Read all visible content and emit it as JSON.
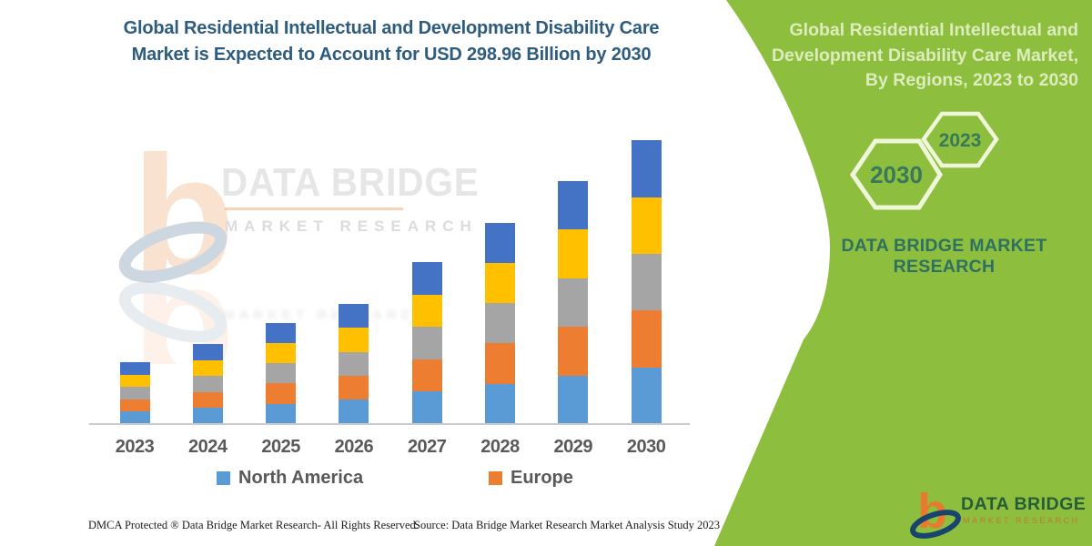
{
  "left_panel": {
    "title_lines": [
      "Global Residential Intellectual and Development Disability Care",
      "Market is Expected to Account for USD 298.96 Billion by 2030"
    ]
  },
  "watermark": {
    "brand": "DATA BRIDGE",
    "sub": "MARKET RESEARCH"
  },
  "chart_data": {
    "type": "bar",
    "stacked": true,
    "unit": "USD Billion",
    "categories": [
      "2023",
      "2024",
      "2025",
      "2026",
      "2027",
      "2028",
      "2029",
      "2030"
    ],
    "series": [
      {
        "name": "North America",
        "color": "#5B9BD5",
        "values": [
          13.0,
          16.8,
          21.4,
          25.4,
          34.1,
          42.5,
          51.3,
          59.8
        ]
      },
      {
        "name": "Europe",
        "color": "#ED7D31",
        "values": [
          13.0,
          16.8,
          21.4,
          25.4,
          34.1,
          42.5,
          51.3,
          59.8
        ]
      },
      {
        "name": "Unlabeled (gray)",
        "color": "#A5A5A5",
        "values": [
          13.0,
          16.8,
          21.4,
          25.4,
          34.1,
          42.5,
          51.3,
          59.8
        ]
      },
      {
        "name": "Unlabeled (yellow)",
        "color": "#FFC000",
        "values": [
          13.0,
          16.8,
          21.4,
          25.4,
          34.1,
          42.5,
          51.3,
          59.8
        ]
      },
      {
        "name": "Unlabeled (dark blue)",
        "color": "#4472C4",
        "values": [
          13.0,
          16.8,
          21.4,
          25.4,
          34.1,
          42.5,
          51.3,
          59.8
        ]
      }
    ],
    "totals_estimated": [
      65.0,
      84.0,
      107.0,
      127.0,
      170.5,
      212.5,
      256.5,
      299.0
    ],
    "stated_final_value": "USD 298.96 Billion by 2030",
    "stack_order_bottom_to_top": [
      "North America",
      "Europe",
      "Unlabeled (gray)",
      "Unlabeled (yellow)",
      "Unlabeled (dark blue)"
    ],
    "legend": [
      {
        "label": "North America",
        "color": "#5B9BD5"
      },
      {
        "label": "Europe",
        "color": "#ED7D31"
      }
    ],
    "legend_position": "bottom",
    "gridlines": false,
    "y_axis_visible": false
  },
  "right_panel": {
    "background_color": "#8dbe3e",
    "title_lines": [
      "Global Residential Intellectual and",
      "Development Disability Care Market,",
      "By Regions, 2023 to 2030"
    ],
    "hexagons": [
      {
        "label": "2030"
      },
      {
        "label": "2023"
      }
    ],
    "brand_lines": [
      "DATA BRIDGE MARKET",
      "RESEARCH"
    ]
  },
  "footer": {
    "dmca": "DMCA Protected ® Data Bridge Market Research-  All Rights Reserved.",
    "source": "Source: Data Bridge Market Research  Market Analysis Study 2023"
  },
  "logo": {
    "brand": "DATA BRIDGE",
    "sub": "MARKET RESEARCH"
  }
}
